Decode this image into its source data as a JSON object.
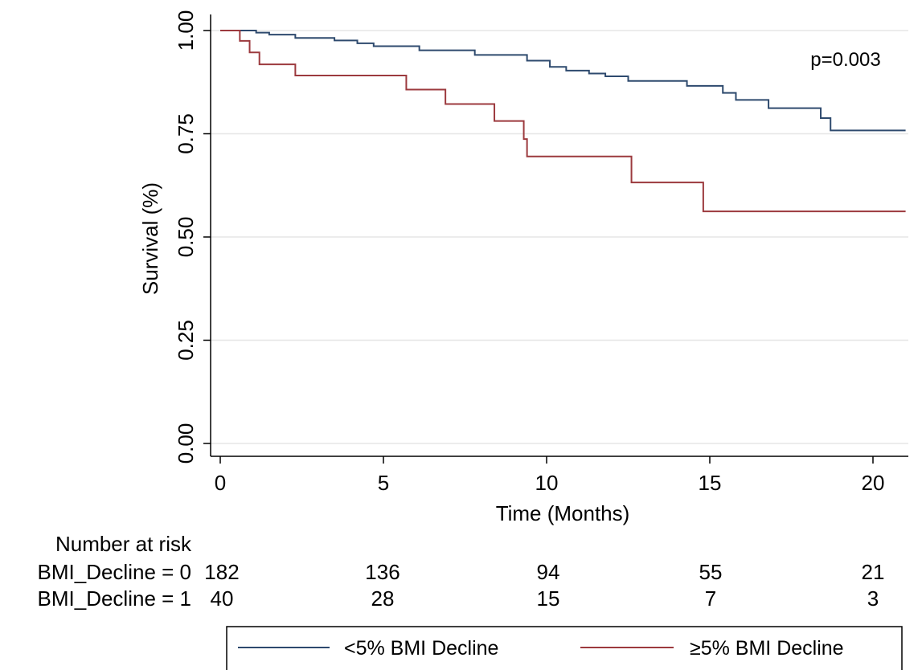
{
  "chart_data": {
    "type": "line",
    "title": "",
    "xlabel": "Time (Months)",
    "ylabel": "Survival (%)",
    "xlim": [
      -0.1,
      21
    ],
    "ylim": [
      0,
      1.03
    ],
    "xticks": [
      0,
      5,
      10,
      15,
      20
    ],
    "xtick_labels": [
      "0",
      "5",
      "10",
      "15",
      "20"
    ],
    "yticks": [
      0,
      0.25,
      0.5,
      0.75,
      1.0
    ],
    "ytick_labels": [
      "0.00",
      "0.25",
      "0.50",
      "0.75",
      "1.00"
    ],
    "grid": "horizontal",
    "annotation": "p=0.003",
    "colors": {
      "series_0": "#2e4a6e",
      "series_1": "#9c3a3e"
    },
    "series": [
      {
        "name": "<5% BMI Decline",
        "step": true,
        "x": [
          0,
          1.1,
          1.5,
          2.3,
          3.5,
          4.2,
          4.7,
          6.1,
          7.8,
          9.4,
          10.1,
          10.6,
          11.3,
          11.8,
          12.5,
          14.3,
          15.4,
          15.8,
          16.8,
          18.4,
          18.7,
          21
        ],
        "y": [
          1.0,
          0.995,
          0.99,
          0.982,
          0.976,
          0.969,
          0.962,
          0.952,
          0.941,
          0.927,
          0.912,
          0.903,
          0.896,
          0.889,
          0.878,
          0.866,
          0.849,
          0.832,
          0.812,
          0.788,
          0.758,
          0.758
        ]
      },
      {
        "name": "≥5% BMI Decline",
        "step": true,
        "x": [
          0,
          0.6,
          0.9,
          1.2,
          2.3,
          5.7,
          6.9,
          8.4,
          9.3,
          9.4,
          12.6,
          14.8,
          21
        ],
        "y": [
          1.0,
          0.975,
          0.947,
          0.918,
          0.891,
          0.857,
          0.822,
          0.781,
          0.737,
          0.695,
          0.632,
          0.562,
          0.562
        ]
      }
    ],
    "risk_table": {
      "title": "Number at risk",
      "times": [
        0,
        5,
        10,
        15,
        20
      ],
      "rows": [
        {
          "label": "BMI_Decline = 0",
          "values": [
            "182",
            "136",
            "94",
            "55",
            "21"
          ]
        },
        {
          "label": "BMI_Decline = 1",
          "values": [
            "40",
            "28",
            "15",
            "7",
            "3"
          ]
        }
      ]
    },
    "legend": {
      "position": "bottom",
      "entries": [
        "<5% BMI Decline",
        "≥5% BMI Decline"
      ]
    }
  }
}
